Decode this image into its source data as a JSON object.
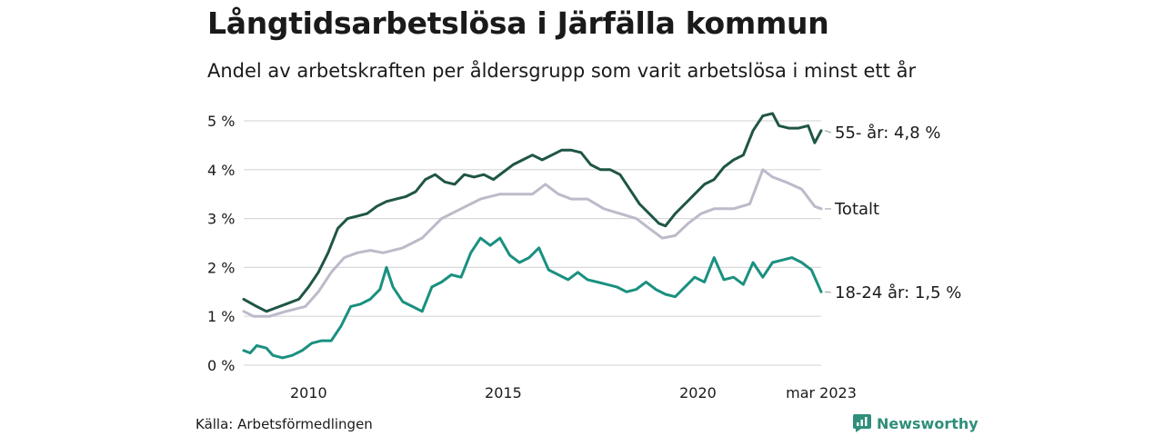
{
  "header": {
    "title": "Långtidsarbetslösa i Järfälla kommun",
    "subtitle": "Andel av arbetskraften per åldersgrupp som varit arbetslösa i minst ett år"
  },
  "footer": {
    "source": "Källa: Arbetsförmedlingen",
    "brand": "Newsworthy",
    "brand_icon": "newsworthy-logo-icon"
  },
  "colors": {
    "older": "#1f5546",
    "total": "#bdbac9",
    "young": "#1a9080",
    "grid": "#d9d9d9",
    "brand": "#2f8f7a"
  },
  "chart_data": {
    "type": "line",
    "ylim": [
      0,
      5
    ],
    "y_ticks": [
      {
        "value": 0,
        "label": "0 %"
      },
      {
        "value": 1,
        "label": "1 %"
      },
      {
        "value": 2,
        "label": "2 %"
      },
      {
        "value": 3,
        "label": "3 %"
      },
      {
        "value": 4,
        "label": "4 %"
      },
      {
        "value": 5,
        "label": "5 %"
      }
    ],
    "xlim": [
      "2008-05",
      "2023-03"
    ],
    "x_ticks": [
      {
        "value": "2010-01",
        "label": "2010"
      },
      {
        "value": "2015-01",
        "label": "2015"
      },
      {
        "value": "2020-01",
        "label": "2020"
      },
      {
        "value": "2023-03",
        "label": "mar 2023"
      }
    ],
    "series": [
      {
        "key": "older",
        "end_label": "55- år: 4,8 %",
        "points": [
          [
            "2008-05",
            1.35
          ],
          [
            "2008-09",
            1.2
          ],
          [
            "2008-12",
            1.1
          ],
          [
            "2009-02",
            1.15
          ],
          [
            "2009-06",
            1.25
          ],
          [
            "2009-10",
            1.35
          ],
          [
            "2010-01",
            1.6
          ],
          [
            "2010-04",
            1.9
          ],
          [
            "2010-07",
            2.3
          ],
          [
            "2010-10",
            2.8
          ],
          [
            "2011-01",
            3.0
          ],
          [
            "2011-04",
            3.05
          ],
          [
            "2011-07",
            3.1
          ],
          [
            "2011-10",
            3.25
          ],
          [
            "2012-01",
            3.35
          ],
          [
            "2012-04",
            3.4
          ],
          [
            "2012-07",
            3.45
          ],
          [
            "2012-10",
            3.55
          ],
          [
            "2013-01",
            3.8
          ],
          [
            "2013-04",
            3.9
          ],
          [
            "2013-07",
            3.75
          ],
          [
            "2013-10",
            3.7
          ],
          [
            "2014-01",
            3.9
          ],
          [
            "2014-04",
            3.85
          ],
          [
            "2014-07",
            3.9
          ],
          [
            "2014-10",
            3.8
          ],
          [
            "2015-01",
            3.95
          ],
          [
            "2015-04",
            4.1
          ],
          [
            "2015-07",
            4.2
          ],
          [
            "2015-10",
            4.3
          ],
          [
            "2016-01",
            4.2
          ],
          [
            "2016-04",
            4.3
          ],
          [
            "2016-07",
            4.4
          ],
          [
            "2016-10",
            4.4
          ],
          [
            "2017-01",
            4.35
          ],
          [
            "2017-04",
            4.1
          ],
          [
            "2017-07",
            4.0
          ],
          [
            "2017-10",
            4.0
          ],
          [
            "2018-01",
            3.9
          ],
          [
            "2018-04",
            3.6
          ],
          [
            "2018-07",
            3.3
          ],
          [
            "2018-10",
            3.1
          ],
          [
            "2019-01",
            2.9
          ],
          [
            "2019-03",
            2.85
          ],
          [
            "2019-06",
            3.1
          ],
          [
            "2019-09",
            3.3
          ],
          [
            "2019-12",
            3.5
          ],
          [
            "2020-03",
            3.7
          ],
          [
            "2020-06",
            3.8
          ],
          [
            "2020-09",
            4.05
          ],
          [
            "2020-12",
            4.2
          ],
          [
            "2021-03",
            4.3
          ],
          [
            "2021-06",
            4.8
          ],
          [
            "2021-09",
            5.1
          ],
          [
            "2021-12",
            5.15
          ],
          [
            "2022-02",
            4.9
          ],
          [
            "2022-05",
            4.85
          ],
          [
            "2022-08",
            4.85
          ],
          [
            "2022-11",
            4.9
          ],
          [
            "2023-01",
            4.55
          ],
          [
            "2023-03",
            4.8
          ]
        ]
      },
      {
        "key": "total",
        "end_label": "Totalt",
        "points": [
          [
            "2008-05",
            1.1
          ],
          [
            "2008-08",
            1.0
          ],
          [
            "2009-01",
            1.0
          ],
          [
            "2009-06",
            1.1
          ],
          [
            "2009-12",
            1.2
          ],
          [
            "2010-04",
            1.5
          ],
          [
            "2010-08",
            1.9
          ],
          [
            "2010-12",
            2.2
          ],
          [
            "2011-04",
            2.3
          ],
          [
            "2011-08",
            2.35
          ],
          [
            "2011-12",
            2.3
          ],
          [
            "2012-06",
            2.4
          ],
          [
            "2012-12",
            2.6
          ],
          [
            "2013-06",
            3.0
          ],
          [
            "2013-12",
            3.2
          ],
          [
            "2014-06",
            3.4
          ],
          [
            "2014-12",
            3.5
          ],
          [
            "2015-06",
            3.5
          ],
          [
            "2015-10",
            3.5
          ],
          [
            "2016-02",
            3.7
          ],
          [
            "2016-06",
            3.5
          ],
          [
            "2016-10",
            3.4
          ],
          [
            "2017-03",
            3.4
          ],
          [
            "2017-08",
            3.2
          ],
          [
            "2018-01",
            3.1
          ],
          [
            "2018-06",
            3.0
          ],
          [
            "2018-10",
            2.8
          ],
          [
            "2019-02",
            2.6
          ],
          [
            "2019-06",
            2.65
          ],
          [
            "2019-10",
            2.9
          ],
          [
            "2020-02",
            3.1
          ],
          [
            "2020-06",
            3.2
          ],
          [
            "2020-12",
            3.2
          ],
          [
            "2021-05",
            3.3
          ],
          [
            "2021-09",
            4.0
          ],
          [
            "2021-12",
            3.85
          ],
          [
            "2022-04",
            3.75
          ],
          [
            "2022-09",
            3.6
          ],
          [
            "2023-01",
            3.25
          ],
          [
            "2023-03",
            3.2
          ]
        ]
      },
      {
        "key": "young",
        "end_label": "18-24 år: 1,5 %",
        "points": [
          [
            "2008-05",
            0.3
          ],
          [
            "2008-07",
            0.25
          ],
          [
            "2008-09",
            0.4
          ],
          [
            "2008-12",
            0.35
          ],
          [
            "2009-02",
            0.2
          ],
          [
            "2009-05",
            0.15
          ],
          [
            "2009-08",
            0.2
          ],
          [
            "2009-11",
            0.3
          ],
          [
            "2010-02",
            0.45
          ],
          [
            "2010-05",
            0.5
          ],
          [
            "2010-08",
            0.5
          ],
          [
            "2010-11",
            0.8
          ],
          [
            "2011-02",
            1.2
          ],
          [
            "2011-05",
            1.25
          ],
          [
            "2011-08",
            1.35
          ],
          [
            "2011-11",
            1.55
          ],
          [
            "2012-01",
            2.0
          ],
          [
            "2012-03",
            1.6
          ],
          [
            "2012-06",
            1.3
          ],
          [
            "2012-09",
            1.2
          ],
          [
            "2012-12",
            1.1
          ],
          [
            "2013-03",
            1.6
          ],
          [
            "2013-06",
            1.7
          ],
          [
            "2013-09",
            1.85
          ],
          [
            "2013-12",
            1.8
          ],
          [
            "2014-03",
            2.3
          ],
          [
            "2014-06",
            2.6
          ],
          [
            "2014-09",
            2.45
          ],
          [
            "2014-12",
            2.6
          ],
          [
            "2015-03",
            2.25
          ],
          [
            "2015-06",
            2.1
          ],
          [
            "2015-09",
            2.2
          ],
          [
            "2015-12",
            2.4
          ],
          [
            "2016-03",
            1.95
          ],
          [
            "2016-06",
            1.85
          ],
          [
            "2016-09",
            1.75
          ],
          [
            "2016-12",
            1.9
          ],
          [
            "2017-03",
            1.75
          ],
          [
            "2017-06",
            1.7
          ],
          [
            "2017-09",
            1.65
          ],
          [
            "2017-12",
            1.6
          ],
          [
            "2018-03",
            1.5
          ],
          [
            "2018-06",
            1.55
          ],
          [
            "2018-09",
            1.7
          ],
          [
            "2018-12",
            1.55
          ],
          [
            "2019-03",
            1.45
          ],
          [
            "2019-06",
            1.4
          ],
          [
            "2019-09",
            1.6
          ],
          [
            "2019-12",
            1.8
          ],
          [
            "2020-03",
            1.7
          ],
          [
            "2020-06",
            2.2
          ],
          [
            "2020-09",
            1.75
          ],
          [
            "2020-12",
            1.8
          ],
          [
            "2021-03",
            1.65
          ],
          [
            "2021-06",
            2.1
          ],
          [
            "2021-09",
            1.8
          ],
          [
            "2021-12",
            2.1
          ],
          [
            "2022-03",
            2.15
          ],
          [
            "2022-06",
            2.2
          ],
          [
            "2022-09",
            2.1
          ],
          [
            "2022-12",
            1.95
          ],
          [
            "2023-03",
            1.5
          ]
        ]
      }
    ]
  }
}
